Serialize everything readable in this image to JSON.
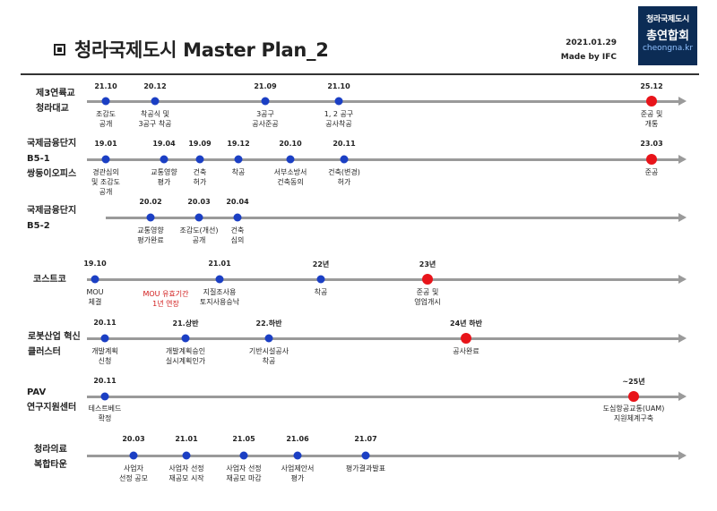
{
  "header": {
    "title": "청라국제도시 Master Plan_2",
    "date": "2021.01.29",
    "made_by": "Made by IFC",
    "logo_line1": "청라국제도시",
    "logo_line2": "총연합회",
    "logo_url": "cheongna.kr"
  },
  "colors": {
    "line": "#9a9a9a",
    "dot": "#1b3fc4",
    "milestone": "#e8141a",
    "logo_bg": "#0c2c55"
  },
  "rows": [
    {
      "label": "제3연륙교\n청라대교",
      "events": [
        {
          "date": "21.10",
          "desc": "조감도\n공개"
        },
        {
          "date": "20.12",
          "desc": "착공식 및\n3공구 착공"
        },
        {
          "date": "21.09",
          "desc": "3공구\n공사준공"
        },
        {
          "date": "21.10",
          "desc": "1, 2 공구\n공사착공"
        },
        {
          "date": "25.12",
          "desc": "준공 및\n개통",
          "milestone": true
        }
      ]
    },
    {
      "label": "국제금융단지\nB5-1\n쌍둥이오피스",
      "events": [
        {
          "date": "19.01",
          "desc": "경관심의\n및 조감도\n공개"
        },
        {
          "date": "19.04",
          "desc": "교통영향\n평가"
        },
        {
          "date": "19.09",
          "desc": "건축\n허가"
        },
        {
          "date": "19.12",
          "desc": "착공"
        },
        {
          "date": "20.10",
          "desc": "서부소방서\n건축동의"
        },
        {
          "date": "20.11",
          "desc": "건축(변경)\n허가"
        },
        {
          "date": "23.03",
          "desc": "준공",
          "milestone": true
        }
      ]
    },
    {
      "label": "국제금융단지\nB5-2",
      "events": [
        {
          "date": "20.02",
          "desc": "교통영향\n평가완료"
        },
        {
          "date": "20.03",
          "desc": "조감도(개선)\n공개"
        },
        {
          "date": "20.04",
          "desc": "건축\n심의"
        }
      ]
    },
    {
      "label": "코스트코",
      "events": [
        {
          "date": "19.10",
          "desc": "MOU\n체결"
        },
        {
          "date": "",
          "desc": "MOU 유효기간\n1년 연장",
          "red": true
        },
        {
          "date": "21.01",
          "desc": "지질조사용\n토지사용승낙"
        },
        {
          "date": "22년",
          "desc": "착공"
        },
        {
          "date": "23년",
          "desc": "준공 및\n영업개시",
          "milestone": true
        }
      ]
    },
    {
      "label": "로봇산업 혁신\n클러스터",
      "events": [
        {
          "date": "20.11",
          "desc": "개발계획\n신청"
        },
        {
          "date": "21.상반",
          "desc": "개발계획승인\n실시계획인가"
        },
        {
          "date": "22.하반",
          "desc": "기반시설공사\n착공"
        },
        {
          "date": "24년 하반",
          "desc": "공사완료",
          "milestone": true
        }
      ]
    },
    {
      "label": "PAV\n연구지원센터",
      "events": [
        {
          "date": "20.11",
          "desc": "테스트베드\n확정"
        },
        {
          "date": "~25년",
          "desc": "도심항공교통(UAM)\n지원체계구축",
          "milestone": true
        }
      ]
    },
    {
      "label": "청라의료\n복합타운",
      "events": [
        {
          "date": "20.03",
          "desc": "사업자\n선정 공모"
        },
        {
          "date": "21.01",
          "desc": "사업자 선정\n재공모 시작"
        },
        {
          "date": "21.05",
          "desc": "사업자 선정\n재공모 마감"
        },
        {
          "date": "21.06",
          "desc": "사업제안서\n평가"
        },
        {
          "date": "21.07",
          "desc": "평가결과발표"
        }
      ]
    }
  ]
}
